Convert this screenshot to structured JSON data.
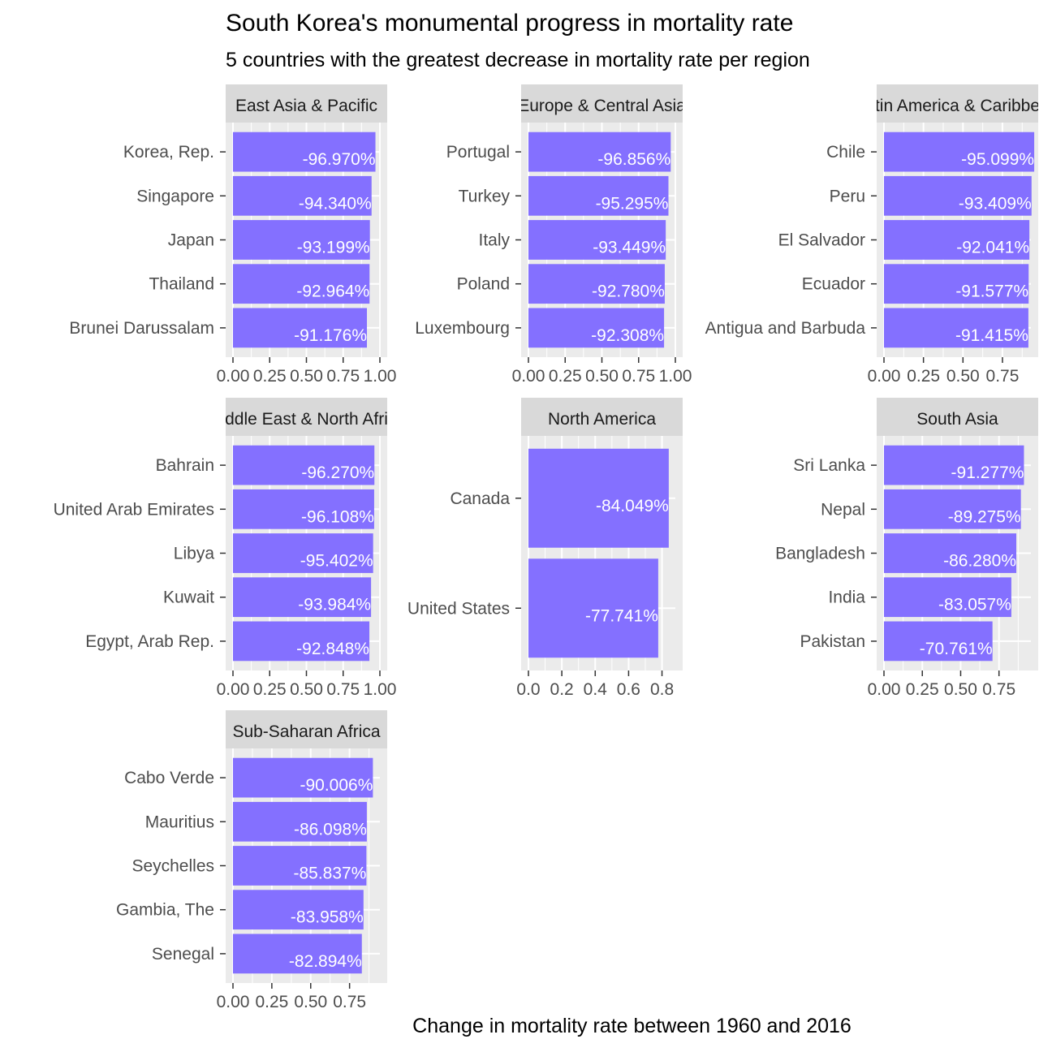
{
  "chart_data": {
    "type": "bar",
    "orientation": "horizontal",
    "title": "South Korea's monumental progress in mortality rate",
    "subtitle": "5 countries with the greatest decrease in mortality rate per region",
    "xlabel": "Change in mortality rate between 1960 and 2016",
    "bar_color": "#8470ff",
    "panel_background": "#ebebeb",
    "strip_background": "#d9d9d9",
    "facets": [
      {
        "region": "East Asia & Pacific",
        "strip_label": "East Asia & Pacific",
        "xlim": [
          0,
          1.0
        ],
        "ticks": [
          0,
          0.25,
          0.5,
          0.75,
          1.0
        ],
        "tick_labels": [
          "0.00",
          "0.25",
          "0.50",
          "0.75",
          "1.00"
        ],
        "categories": [
          "Korea, Rep.",
          "Singapore",
          "Japan",
          "Thailand",
          "Brunei Darussalam"
        ],
        "values": [
          0.9697,
          0.9434,
          0.93199,
          0.92964,
          0.91176
        ],
        "labels": [
          "-96.970%",
          "-94.340%",
          "-93.199%",
          "-92.964%",
          "-91.176%"
        ]
      },
      {
        "region": "Europe & Central Asia",
        "strip_label": "Europe & Central Asia",
        "xlim": [
          0,
          1.0
        ],
        "ticks": [
          0,
          0.25,
          0.5,
          0.75,
          1.0
        ],
        "tick_labels": [
          "0.00",
          "0.25",
          "0.50",
          "0.75",
          "1.00"
        ],
        "categories": [
          "Portugal",
          "Turkey",
          "Italy",
          "Poland",
          "Luxembourg"
        ],
        "values": [
          0.96856,
          0.95295,
          0.93449,
          0.9278,
          0.92308
        ],
        "labels": [
          "-96.856%",
          "-95.295%",
          "-93.449%",
          "-92.780%",
          "-92.308%"
        ]
      },
      {
        "region": "Latin America & Caribbean",
        "strip_label": "Latin America & Caribbean",
        "xlim": [
          0,
          0.93
        ],
        "ticks": [
          0,
          0.25,
          0.5,
          0.75
        ],
        "tick_labels": [
          "0.00",
          "0.25",
          "0.50",
          "0.75"
        ],
        "categories": [
          "Chile",
          "Peru",
          "El Salvador",
          "Ecuador",
          "Antigua and Barbuda"
        ],
        "values": [
          0.95099,
          0.93409,
          0.92041,
          0.91577,
          0.91415
        ],
        "labels": [
          "-95.099%",
          "-93.409%",
          "-92.041%",
          "-91.577%",
          "-91.415%"
        ]
      },
      {
        "region": "Middle East & North Africa",
        "strip_label": "Middle East & North Africa",
        "xlim": [
          0,
          1.0
        ],
        "ticks": [
          0,
          0.25,
          0.5,
          0.75,
          1.0
        ],
        "tick_labels": [
          "0.00",
          "0.25",
          "0.50",
          "0.75",
          "1.00"
        ],
        "categories": [
          "Bahrain",
          "United Arab Emirates",
          "Libya",
          "Kuwait",
          "Egypt, Arab Rep."
        ],
        "values": [
          0.9627,
          0.96108,
          0.95402,
          0.93984,
          0.92848
        ],
        "labels": [
          "-96.270%",
          "-96.108%",
          "-95.402%",
          "-93.984%",
          "-92.848%"
        ]
      },
      {
        "region": "North America",
        "strip_label": "North America",
        "xlim": [
          0,
          0.88
        ],
        "ticks": [
          0,
          0.2,
          0.4,
          0.6,
          0.8
        ],
        "tick_labels": [
          "0.0",
          "0.2",
          "0.4",
          "0.6",
          "0.8"
        ],
        "categories": [
          "Canada",
          "United States"
        ],
        "values": [
          0.84049,
          0.77741
        ],
        "labels": [
          "-84.049%",
          "-77.741%"
        ]
      },
      {
        "region": "South Asia",
        "strip_label": "South Asia",
        "xlim": [
          0,
          0.958
        ],
        "ticks": [
          0,
          0.25,
          0.5,
          0.75
        ],
        "tick_labels": [
          "0.00",
          "0.25",
          "0.50",
          "0.75"
        ],
        "categories": [
          "Sri Lanka",
          "Nepal",
          "Bangladesh",
          "India",
          "Pakistan"
        ],
        "values": [
          0.91277,
          0.89275,
          0.8628,
          0.83057,
          0.70761
        ],
        "labels": [
          "-91.277%",
          "-89.275%",
          "-86.280%",
          "-83.057%",
          "-70.761%"
        ]
      },
      {
        "region": "Sub-Saharan Africa",
        "strip_label": "Sub-Saharan Africa",
        "xlim": [
          0,
          0.945
        ],
        "ticks": [
          0,
          0.25,
          0.5,
          0.75
        ],
        "tick_labels": [
          "0.00",
          "0.25",
          "0.50",
          "0.75"
        ],
        "categories": [
          "Cabo Verde",
          "Mauritius",
          "Seychelles",
          "Gambia, The",
          "Senegal"
        ],
        "values": [
          0.90006,
          0.86098,
          0.85837,
          0.83958,
          0.82894
        ],
        "labels": [
          "-90.006%",
          "-86.098%",
          "-85.837%",
          "-83.958%",
          "-82.894%"
        ]
      }
    ]
  }
}
